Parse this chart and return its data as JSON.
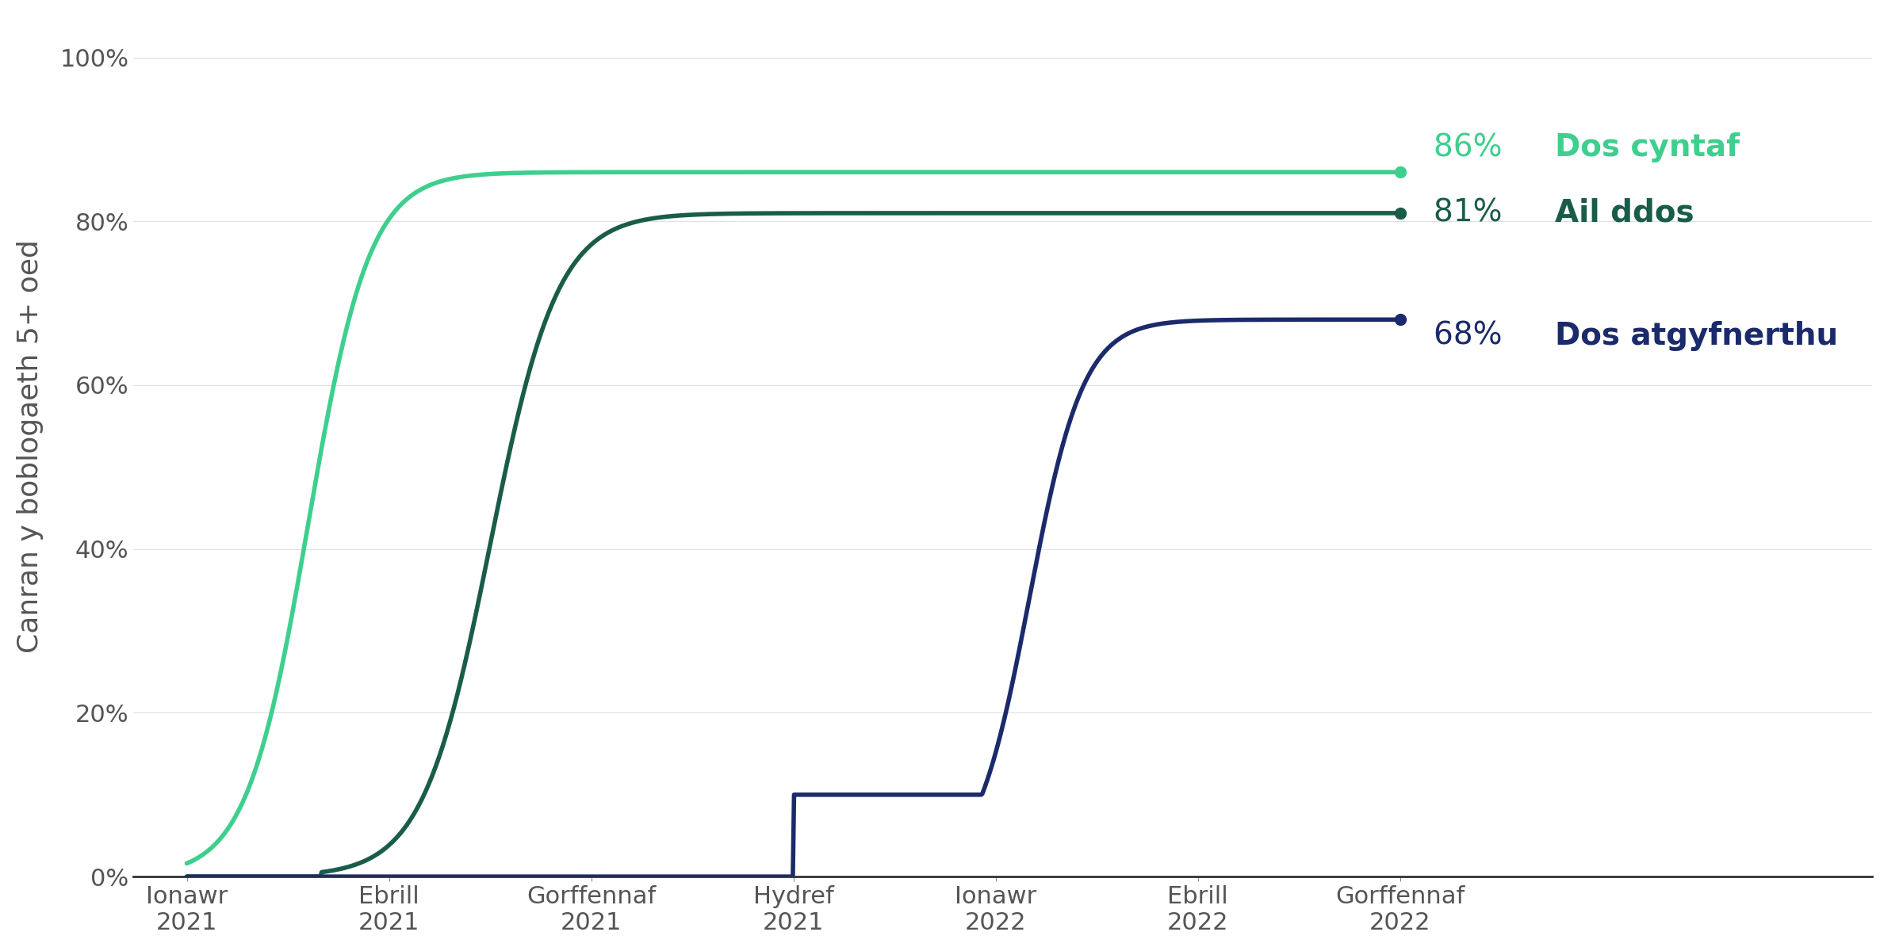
{
  "title": "",
  "ylabel": "Canran y boblogaeth 5+ oed",
  "xlabel": "",
  "background_color": "#ffffff",
  "ylim": [
    0,
    1.05
  ],
  "yticks": [
    0,
    0.2,
    0.4,
    0.6,
    0.8,
    1.0
  ],
  "xtick_labels": [
    "Ionawr\n2021",
    "Ebrill\n2021",
    "Gorffennaf\n2021",
    "Hydref\n2021",
    "Ionawr\n2022",
    "Ebrill\n2022",
    "Gorffennaf\n2022"
  ],
  "line1_color": "#3ecf8e",
  "line2_color": "#1a5c4a",
  "line3_color": "#1b2a6b",
  "label1_pct": "86%",
  "label1_txt": "Dos cyntaf",
  "label2_pct": "81%",
  "label2_txt": "Ail ddos",
  "label3_pct": "68%",
  "label3_txt": "Dos atgyfnerthu",
  "line_width": 4.0,
  "annotation_fontsize": 28,
  "ylabel_fontsize": 26,
  "tick_fontsize": 22
}
